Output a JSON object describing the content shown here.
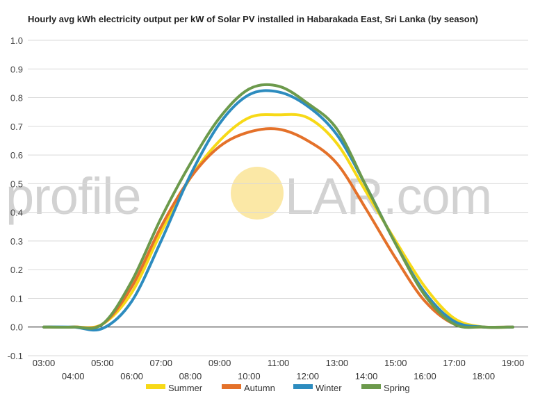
{
  "chart_data": {
    "type": "line",
    "title": "Hourly avg kWh electricity output per kW of Solar PV installed in Habarakada East, Sri Lanka (by season)",
    "xlabel": "",
    "ylabel": "",
    "x": [
      "03:00",
      "04:00",
      "05:00",
      "06:00",
      "07:00",
      "08:00",
      "09:00",
      "10:00",
      "11:00",
      "12:00",
      "13:00",
      "14:00",
      "15:00",
      "16:00",
      "17:00",
      "18:00",
      "19:00"
    ],
    "ylim": [
      -0.1,
      1.0
    ],
    "yticks": [
      "1.0",
      "0.9",
      "0.8",
      "0.7",
      "0.6",
      "0.5",
      "0.4",
      "0.3",
      "0.2",
      "0.1",
      "0.0",
      "-0.1"
    ],
    "grid": true,
    "legend_position": "bottom",
    "series": [
      {
        "name": "Summer",
        "color": "#f7d917",
        "values": [
          0.0,
          0.0,
          0.01,
          0.12,
          0.33,
          0.52,
          0.65,
          0.73,
          0.74,
          0.73,
          0.64,
          0.47,
          0.3,
          0.14,
          0.03,
          0.0,
          0.0
        ]
      },
      {
        "name": "Autumn",
        "color": "#e4712a",
        "values": [
          0.0,
          0.0,
          0.01,
          0.14,
          0.35,
          0.52,
          0.63,
          0.68,
          0.69,
          0.65,
          0.57,
          0.41,
          0.24,
          0.09,
          0.01,
          0.0,
          0.0
        ]
      },
      {
        "name": "Winter",
        "color": "#2d8cbf",
        "values": [
          0.0,
          0.0,
          -0.005,
          0.09,
          0.3,
          0.53,
          0.71,
          0.81,
          0.82,
          0.77,
          0.67,
          0.49,
          0.29,
          0.12,
          0.02,
          0.0,
          0.0
        ]
      },
      {
        "name": "Spring",
        "color": "#6c9a4c",
        "values": [
          0.0,
          0.0,
          0.01,
          0.16,
          0.38,
          0.57,
          0.73,
          0.83,
          0.84,
          0.78,
          0.69,
          0.49,
          0.29,
          0.11,
          0.01,
          0.0,
          0.0
        ]
      }
    ]
  },
  "watermark": {
    "left_text": "profile",
    "right_text": "LAR.com",
    "sun_color": "#fbe8a6"
  }
}
